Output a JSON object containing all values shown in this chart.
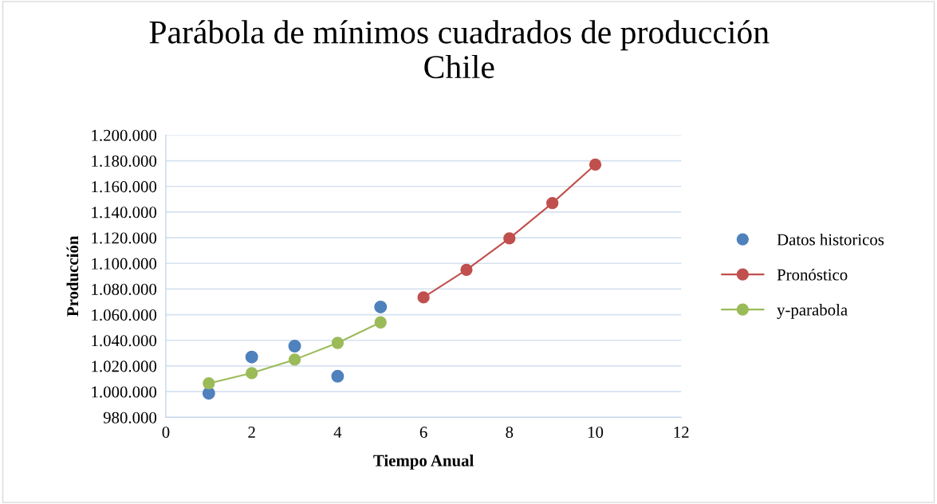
{
  "chart_data": {
    "type": "scatter",
    "title": "Parábola de mínimos cuadrados de producción\nChile",
    "xlabel": "Tiempo Anual",
    "ylabel": "Producción",
    "series": [
      {
        "name": "Datos historicos",
        "color": "#4f81bd",
        "x": [
          1,
          2,
          3,
          4,
          5
        ],
        "values": [
          998700,
          1027000,
          1035500,
          1012000,
          1066000
        ]
      },
      {
        "name": "Pronóstico",
        "type": "line",
        "color": "#c0504d",
        "x": [
          6,
          7,
          8,
          9,
          10
        ],
        "values": [
          1073500,
          1095000,
          1119500,
          1147000,
          1177000
        ]
      },
      {
        "name": "y-parabola",
        "type": "line",
        "color": "#9bbb59",
        "x": [
          1,
          2,
          3,
          4,
          5
        ],
        "values": [
          1006500,
          1014500,
          1025000,
          1038000,
          1054000
        ]
      }
    ],
    "xlim": [
      0,
      12
    ],
    "xticks": [
      0,
      2,
      4,
      6,
      8,
      10,
      12
    ],
    "ylim": [
      980000,
      1200000
    ],
    "yticks": [
      {
        "value": 980000,
        "label": "980.000"
      },
      {
        "value": 1000000,
        "label": "1.000.000"
      },
      {
        "value": 1020000,
        "label": "1.020.000"
      },
      {
        "value": 1040000,
        "label": "1.040.000"
      },
      {
        "value": 1060000,
        "label": "1.060.000"
      },
      {
        "value": 1080000,
        "label": "1.080.000"
      },
      {
        "value": 1100000,
        "label": "1.100.000"
      },
      {
        "value": 1120000,
        "label": "1.120.000"
      },
      {
        "value": 1140000,
        "label": "1.140.000"
      },
      {
        "value": 1160000,
        "label": "1.160.000"
      },
      {
        "value": 1180000,
        "label": "1.180.000"
      },
      {
        "value": 1200000,
        "label": "1.200.000"
      }
    ],
    "grid": "y",
    "legend": "right",
    "marker": "circle"
  }
}
